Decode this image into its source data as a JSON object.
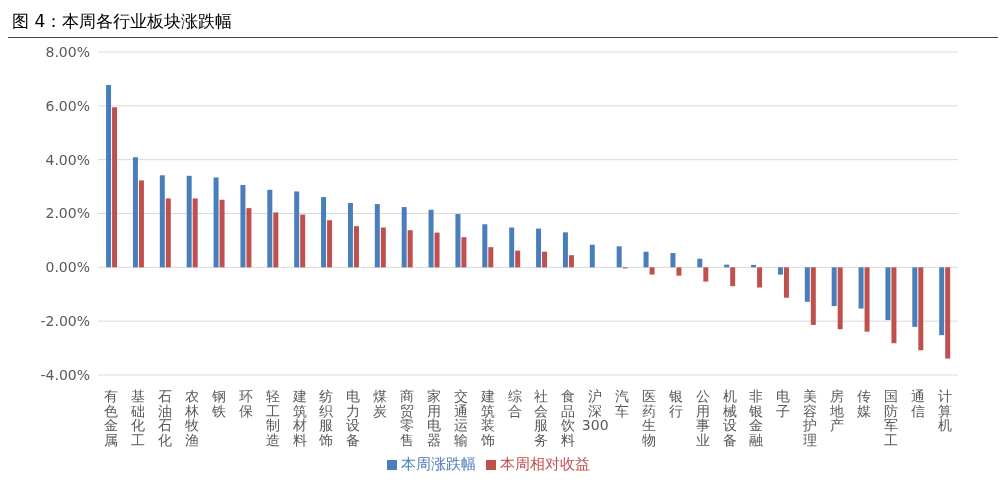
{
  "chart_data": {
    "type": "bar",
    "title": "图 4：本周各行业板块涨跌幅",
    "categories": [
      "有色金属",
      "基础化工",
      "石油石化",
      "农林牧渔",
      "钢铁",
      "环保",
      "轻工制造",
      "建筑材料",
      "纺织服饰",
      "电力设备",
      "煤炭",
      "商贸零售",
      "家用电器",
      "交通运输",
      "建筑装饰",
      "综合",
      "社会服务",
      "食品饮料",
      "沪深300",
      "汽车",
      "医药生物",
      "银行",
      "公用事业",
      "机械设备",
      "非银金融",
      "电子",
      "美容护理",
      "房地产",
      "传媒",
      "国防军工",
      "通信",
      "计算机"
    ],
    "series": [
      {
        "name": "本周涨跌幅",
        "color": "#4a7ebb",
        "values": [
          6.77,
          4.09,
          3.42,
          3.4,
          3.34,
          3.06,
          2.88,
          2.82,
          2.61,
          2.39,
          2.35,
          2.24,
          2.14,
          1.98,
          1.6,
          1.48,
          1.44,
          1.3,
          0.84,
          0.78,
          0.58,
          0.53,
          0.32,
          0.1,
          0.09,
          -0.27,
          -1.28,
          -1.44,
          -1.53,
          -1.96,
          -2.21,
          -2.52
        ]
      },
      {
        "name": "本周相对收益",
        "color": "#c0504d",
        "values": [
          5.95,
          3.23,
          2.56,
          2.56,
          2.51,
          2.2,
          2.04,
          1.96,
          1.75,
          1.53,
          1.48,
          1.38,
          1.29,
          1.12,
          0.75,
          0.62,
          0.58,
          0.45,
          0,
          -0.04,
          -0.27,
          -0.31,
          -0.53,
          -0.7,
          -0.75,
          -1.13,
          -2.14,
          -2.3,
          -2.39,
          -2.82,
          -3.08,
          -3.39
        ]
      }
    ],
    "ylim": [
      -4,
      8
    ],
    "yticks": [
      {
        "value": -4,
        "label": "-4.00%"
      },
      {
        "value": -2,
        "label": "-2.00%"
      },
      {
        "value": 0,
        "label": "0.00%"
      },
      {
        "value": 2,
        "label": "2.00%"
      },
      {
        "value": 4,
        "label": "4.00%"
      },
      {
        "value": 6,
        "label": "6.00%"
      },
      {
        "value": 8,
        "label": "8.00%"
      }
    ],
    "grid": "y",
    "legend": "bottom"
  }
}
